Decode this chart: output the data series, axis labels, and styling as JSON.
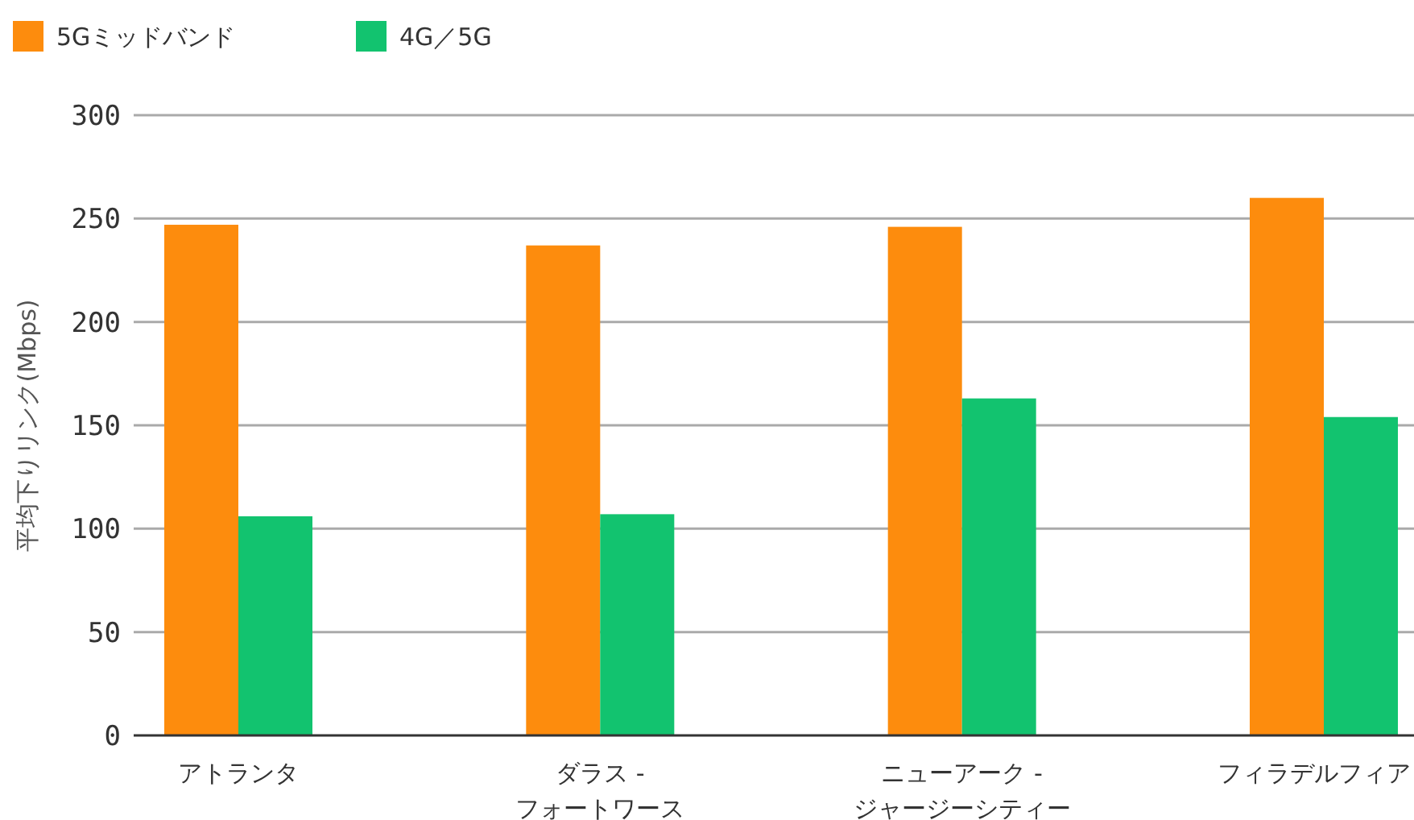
{
  "chart_data": {
    "type": "bar",
    "categories": [
      "アトランタ",
      "ダラス - フォートワース",
      "ニューアーク - ジャージーシティー",
      "フィラデルフィア"
    ],
    "series": [
      {
        "name": "5Gミッドバンド",
        "color": "#fd8c0d",
        "values": [
          247,
          237,
          246,
          260
        ]
      },
      {
        "name": "4G／5G",
        "color": "#12c36f",
        "values": [
          106,
          107,
          163,
          154
        ]
      }
    ],
    "ylabel": "平均下りリンク(Mbps)",
    "ylim": [
      0,
      300
    ],
    "yticks": [
      0,
      50,
      100,
      150,
      200,
      250,
      300
    ],
    "grid": "y",
    "legend": "top left"
  }
}
